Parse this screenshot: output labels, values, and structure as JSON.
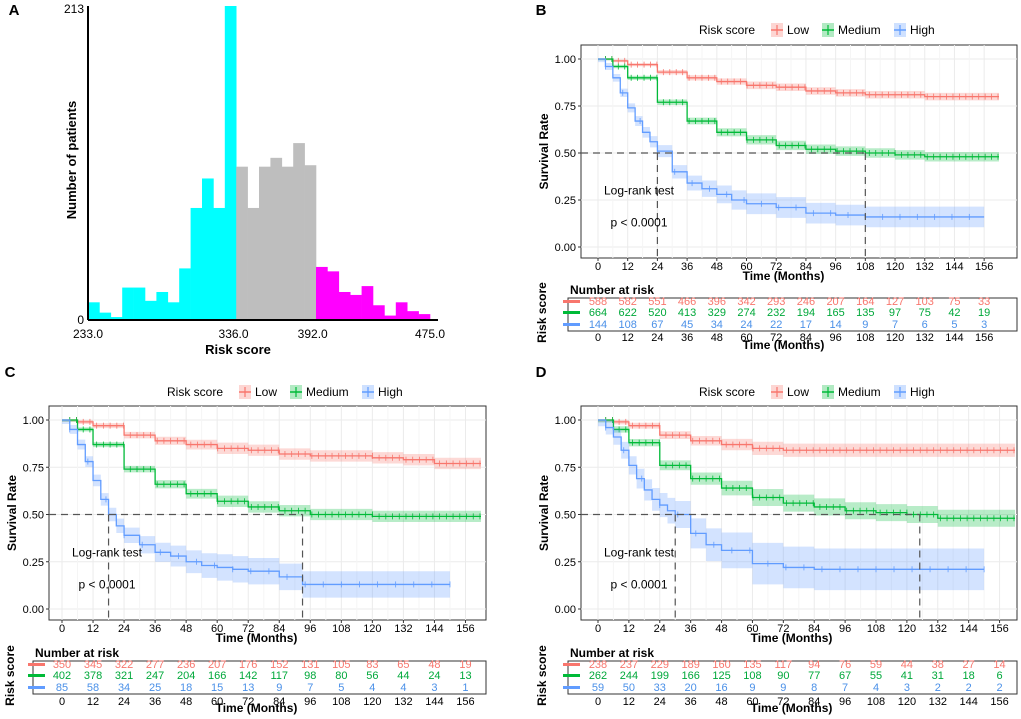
{
  "colors": {
    "low": "#f8766d",
    "medium": "#00ba38",
    "high": "#619cff",
    "hist_low": "#00ffff",
    "hist_mid": "#bebebe",
    "hist_high": "#ff00ff",
    "risk_low_text": "#f8766d",
    "risk_med_text": "#00a83a",
    "risk_high_text": "#4a90e8"
  },
  "chart_data": [
    {
      "panel": "A",
      "type": "bar",
      "xlabel": "Risk score",
      "ylabel": "Number of patients",
      "xlim": [
        233.0,
        475.0
      ],
      "ylim": [
        0,
        213
      ],
      "y_tick_labels": [
        "0",
        "213"
      ],
      "x_tick_labels": [
        "233.0",
        "336.0",
        "392.0",
        "475.0"
      ],
      "bin_width": 8.07,
      "bins": [
        {
          "x0": 233.0,
          "count": 12,
          "group": "low"
        },
        {
          "x0": 241.07,
          "count": 5,
          "group": "low"
        },
        {
          "x0": 249.13,
          "count": 2,
          "group": "low"
        },
        {
          "x0": 257.2,
          "count": 22,
          "group": "low"
        },
        {
          "x0": 265.27,
          "count": 22,
          "group": "low"
        },
        {
          "x0": 273.33,
          "count": 13,
          "group": "low"
        },
        {
          "x0": 281.4,
          "count": 19,
          "group": "low"
        },
        {
          "x0": 289.47,
          "count": 12,
          "group": "low"
        },
        {
          "x0": 297.53,
          "count": 35,
          "group": "low"
        },
        {
          "x0": 305.6,
          "count": 76,
          "group": "low"
        },
        {
          "x0": 313.67,
          "count": 96,
          "group": "low"
        },
        {
          "x0": 321.73,
          "count": 76,
          "group": "low"
        },
        {
          "x0": 329.8,
          "count": 213,
          "group": "low"
        },
        {
          "x0": 337.87,
          "count": 104,
          "group": "medium"
        },
        {
          "x0": 345.93,
          "count": 76,
          "group": "medium"
        },
        {
          "x0": 354.0,
          "count": 104,
          "group": "medium"
        },
        {
          "x0": 362.07,
          "count": 110,
          "group": "medium"
        },
        {
          "x0": 370.13,
          "count": 104,
          "group": "medium"
        },
        {
          "x0": 378.2,
          "count": 120,
          "group": "medium"
        },
        {
          "x0": 386.27,
          "count": 105,
          "group": "medium"
        },
        {
          "x0": 394.33,
          "count": 36,
          "group": "high"
        },
        {
          "x0": 402.4,
          "count": 33,
          "group": "high"
        },
        {
          "x0": 410.47,
          "count": 19,
          "group": "high"
        },
        {
          "x0": 418.53,
          "count": 17,
          "group": "high"
        },
        {
          "x0": 426.6,
          "count": 23,
          "group": "high"
        },
        {
          "x0": 434.67,
          "count": 10,
          "group": "high"
        },
        {
          "x0": 442.73,
          "count": 3,
          "group": "high"
        },
        {
          "x0": 450.8,
          "count": 12,
          "group": "high"
        },
        {
          "x0": 458.87,
          "count": 6,
          "group": "high"
        },
        {
          "x0": 466.93,
          "count": 4,
          "group": "high"
        }
      ]
    },
    {
      "panel": "B",
      "type": "line",
      "subtype": "kaplan-meier",
      "legend_title": "Risk score",
      "legend_labels": [
        "Low",
        "Medium",
        "High"
      ],
      "ylabel": "Survival Rate",
      "xlabel": "Time (Months)",
      "xlim": [
        0,
        162
      ],
      "ylim": [
        0,
        1.05
      ],
      "x_ticks": [
        0,
        12,
        24,
        36,
        48,
        60,
        72,
        84,
        96,
        108,
        120,
        132,
        144,
        156
      ],
      "y_ticks": [
        0.0,
        0.25,
        0.5,
        0.75,
        1.0
      ],
      "y_tick_labels": [
        "0.00",
        "0.25",
        "0.50",
        "0.75",
        "1.00"
      ],
      "annotation_line1": "Log-rank test",
      "annotation_line2": "p < 0.0001",
      "median_survival": [
        24,
        108
      ],
      "series": [
        {
          "name": "Low",
          "x": [
            0,
            6,
            12,
            24,
            36,
            48,
            60,
            72,
            84,
            96,
            108,
            120,
            132,
            144,
            156,
            162
          ],
          "y": [
            1,
            0.99,
            0.97,
            0.93,
            0.9,
            0.88,
            0.86,
            0.85,
            0.83,
            0.82,
            0.81,
            0.81,
            0.8,
            0.8,
            0.8,
            0.8
          ],
          "ci": 0.02
        },
        {
          "name": "Medium",
          "x": [
            0,
            6,
            12,
            24,
            36,
            48,
            60,
            72,
            84,
            96,
            108,
            120,
            132,
            144,
            156,
            162
          ],
          "y": [
            1,
            0.96,
            0.9,
            0.77,
            0.67,
            0.61,
            0.57,
            0.54,
            0.52,
            0.51,
            0.5,
            0.49,
            0.48,
            0.48,
            0.48,
            0.48
          ],
          "ci": 0.025
        },
        {
          "name": "High",
          "x": [
            0,
            3,
            6,
            9,
            12,
            15,
            18,
            21,
            24,
            30,
            36,
            42,
            48,
            54,
            60,
            72,
            84,
            96,
            108,
            120,
            132,
            144,
            156
          ],
          "y": [
            1,
            0.96,
            0.9,
            0.82,
            0.74,
            0.67,
            0.61,
            0.56,
            0.51,
            0.4,
            0.34,
            0.31,
            0.28,
            0.25,
            0.23,
            0.21,
            0.18,
            0.17,
            0.16,
            0.16,
            0.16,
            0.16,
            0.16
          ],
          "ci": 0.055
        }
      ],
      "risk_table": {
        "title": "Number at risk",
        "ylabel": "Risk score",
        "x_ticks": [
          0,
          12,
          24,
          36,
          48,
          60,
          72,
          84,
          96,
          108,
          120,
          132,
          144,
          156
        ],
        "rows": [
          {
            "name": "Low",
            "values": [
              "588",
              "582",
              "551",
              "466",
              "396",
              "342",
              "293",
              "246",
              "207",
              "164",
              "127",
              "103",
              "75",
              "33"
            ]
          },
          {
            "name": "Medium",
            "values": [
              "664",
              "622",
              "520",
              "413",
              "329",
              "274",
              "232",
              "194",
              "165",
              "135",
              "97",
              "75",
              "42",
              "19"
            ]
          },
          {
            "name": "High",
            "values": [
              "144",
              "108",
              "67",
              "45",
              "34",
              "24",
              "22",
              "17",
              "14",
              "9",
              "7",
              "6",
              "5",
              "3"
            ]
          }
        ]
      }
    },
    {
      "panel": "C",
      "type": "line",
      "subtype": "kaplan-meier",
      "legend_title": "Risk score",
      "legend_labels": [
        "Low",
        "Medium",
        "High"
      ],
      "ylabel": "Survival Rate",
      "xlabel": "Time (Months)",
      "xlim": [
        0,
        162
      ],
      "ylim": [
        0,
        1.05
      ],
      "x_ticks": [
        0,
        12,
        24,
        36,
        48,
        60,
        72,
        84,
        96,
        108,
        120,
        132,
        144,
        156
      ],
      "y_ticks": [
        0.0,
        0.25,
        0.5,
        0.75,
        1.0
      ],
      "y_tick_labels": [
        "0.00",
        "0.25",
        "0.50",
        "0.75",
        "1.00"
      ],
      "annotation_line1": "Log-rank test",
      "annotation_line2": "p < 0.0001",
      "median_survival": [
        18,
        93
      ],
      "series": [
        {
          "name": "Low",
          "x": [
            0,
            6,
            12,
            24,
            36,
            48,
            60,
            72,
            84,
            96,
            108,
            120,
            132,
            144,
            156,
            162
          ],
          "y": [
            1,
            0.99,
            0.97,
            0.92,
            0.89,
            0.87,
            0.85,
            0.84,
            0.82,
            0.81,
            0.81,
            0.8,
            0.79,
            0.77,
            0.77,
            0.77
          ],
          "ci": 0.03
        },
        {
          "name": "Medium",
          "x": [
            0,
            6,
            12,
            24,
            36,
            48,
            60,
            72,
            84,
            96,
            108,
            120,
            132,
            144,
            156,
            162
          ],
          "y": [
            1,
            0.95,
            0.87,
            0.74,
            0.66,
            0.61,
            0.57,
            0.54,
            0.52,
            0.5,
            0.5,
            0.49,
            0.49,
            0.49,
            0.49,
            0.49
          ],
          "ci": 0.03
        },
        {
          "name": "High",
          "x": [
            0,
            3,
            6,
            9,
            12,
            15,
            18,
            21,
            24,
            30,
            36,
            42,
            48,
            54,
            60,
            66,
            72,
            84,
            93,
            96,
            108,
            120,
            132,
            144,
            150
          ],
          "y": [
            1,
            0.95,
            0.87,
            0.78,
            0.68,
            0.58,
            0.5,
            0.44,
            0.39,
            0.34,
            0.3,
            0.28,
            0.25,
            0.23,
            0.22,
            0.21,
            0.2,
            0.17,
            0.13,
            0.13,
            0.13,
            0.13,
            0.13,
            0.13,
            0.13
          ],
          "ci": 0.07
        }
      ],
      "risk_table": {
        "title": "Number at risk",
        "ylabel": "Risk score",
        "x_ticks": [
          0,
          12,
          24,
          36,
          48,
          60,
          72,
          84,
          96,
          108,
          120,
          132,
          144,
          156
        ],
        "rows": [
          {
            "name": "Low",
            "values": [
              "350",
              "345",
              "322",
              "277",
              "236",
              "207",
              "176",
              "152",
              "131",
              "105",
              "83",
              "65",
              "48",
              "19"
            ]
          },
          {
            "name": "Medium",
            "values": [
              "402",
              "378",
              "321",
              "247",
              "204",
              "166",
              "142",
              "117",
              "98",
              "80",
              "56",
              "44",
              "24",
              "13"
            ]
          },
          {
            "name": "High",
            "values": [
              "85",
              "58",
              "34",
              "25",
              "18",
              "15",
              "13",
              "9",
              "7",
              "5",
              "4",
              "4",
              "3",
              "1"
            ]
          }
        ]
      }
    },
    {
      "panel": "D",
      "type": "line",
      "subtype": "kaplan-meier",
      "legend_title": "Risk score",
      "legend_labels": [
        "Low",
        "Medium",
        "High"
      ],
      "ylabel": "Survival Rate",
      "xlabel": "Time (Months)",
      "xlim": [
        0,
        162
      ],
      "ylim": [
        0,
        1.05
      ],
      "x_ticks": [
        0,
        12,
        24,
        36,
        48,
        60,
        72,
        84,
        96,
        108,
        120,
        132,
        144,
        156
      ],
      "y_ticks": [
        0.0,
        0.25,
        0.5,
        0.75,
        1.0
      ],
      "y_tick_labels": [
        "0.00",
        "0.25",
        "0.50",
        "0.75",
        "1.00"
      ],
      "annotation_line1": "Log-rank test",
      "annotation_line2": "p < 0.0001",
      "median_survival": [
        30,
        125
      ],
      "series": [
        {
          "name": "Low",
          "x": [
            0,
            6,
            12,
            24,
            36,
            48,
            60,
            72,
            84,
            96,
            108,
            120,
            132,
            144,
            156,
            162
          ],
          "y": [
            1,
            0.99,
            0.97,
            0.92,
            0.89,
            0.87,
            0.85,
            0.84,
            0.84,
            0.84,
            0.84,
            0.84,
            0.84,
            0.84,
            0.84,
            0.84
          ],
          "ci": 0.035
        },
        {
          "name": "Medium",
          "x": [
            0,
            6,
            12,
            24,
            36,
            48,
            60,
            72,
            84,
            96,
            108,
            120,
            132,
            144,
            156,
            162
          ],
          "y": [
            1,
            0.95,
            0.88,
            0.76,
            0.69,
            0.64,
            0.59,
            0.56,
            0.54,
            0.52,
            0.51,
            0.5,
            0.48,
            0.48,
            0.48,
            0.48
          ],
          "ci": 0.045
        },
        {
          "name": "High",
          "x": [
            0,
            3,
            6,
            9,
            12,
            15,
            18,
            21,
            24,
            27,
            30,
            36,
            42,
            48,
            60,
            72,
            84,
            96,
            108,
            120,
            132,
            144,
            150
          ],
          "y": [
            1,
            0.96,
            0.91,
            0.84,
            0.76,
            0.69,
            0.63,
            0.58,
            0.55,
            0.52,
            0.5,
            0.4,
            0.34,
            0.31,
            0.24,
            0.22,
            0.21,
            0.21,
            0.21,
            0.21,
            0.21,
            0.21,
            0.21
          ],
          "ci": 0.11
        }
      ],
      "risk_table": {
        "title": "Number at risk",
        "ylabel": "Risk score",
        "x_ticks": [
          0,
          12,
          24,
          36,
          48,
          60,
          72,
          84,
          96,
          108,
          120,
          132,
          144,
          156
        ],
        "rows": [
          {
            "name": "Low",
            "values": [
              "238",
              "237",
              "229",
              "189",
              "160",
              "135",
              "117",
              "94",
              "76",
              "59",
              "44",
              "38",
              "27",
              "14"
            ]
          },
          {
            "name": "Medium",
            "values": [
              "262",
              "244",
              "199",
              "166",
              "125",
              "108",
              "90",
              "77",
              "67",
              "55",
              "41",
              "31",
              "18",
              "6"
            ]
          },
          {
            "name": "High",
            "values": [
              "59",
              "50",
              "33",
              "20",
              "16",
              "9",
              "9",
              "8",
              "7",
              "4",
              "3",
              "2",
              "2",
              "2"
            ]
          }
        ]
      }
    }
  ]
}
